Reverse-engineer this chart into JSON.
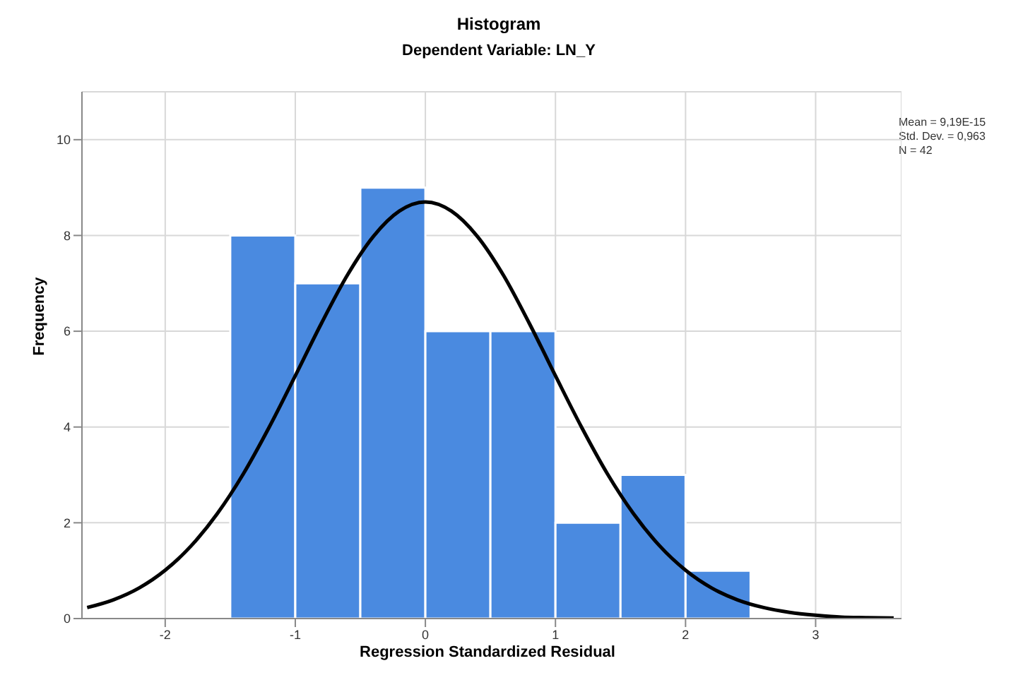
{
  "chart_data": {
    "type": "histogram",
    "title": "Histogram",
    "subtitle": "Dependent Variable: LN_Y",
    "xlabel": "Regression Standardized Residual",
    "ylabel": "Frequency",
    "bins": [
      -1.5,
      -1,
      -0.5,
      0,
      0.5,
      1,
      1.5,
      2,
      2.5
    ],
    "values": [
      8,
      7,
      9,
      6,
      6,
      2,
      3,
      1
    ],
    "color": "#4a8ae0",
    "series": [
      {
        "type": "line",
        "color": "#000000",
        "x": [
          -2.6,
          -2.4,
          -2.2,
          -2.0,
          -1.8,
          -1.6,
          -1.4,
          -1.2,
          -1.0,
          -0.8,
          -0.6,
          -0.4,
          -0.2,
          0,
          0.2,
          0.4,
          0.6,
          0.8,
          1.0,
          1.2,
          1.4,
          1.6,
          1.8,
          2.0,
          2.2,
          2.4,
          2.6,
          2.8,
          3.0,
          3.2,
          3.4,
          3.6
        ],
        "values": [
          0.23,
          0.39,
          0.64,
          1.01,
          1.52,
          2.19,
          3.02,
          4.0,
          5.07,
          6.16,
          7.17,
          7.98,
          8.51,
          8.7,
          8.51,
          7.98,
          7.17,
          6.16,
          5.07,
          4.0,
          3.02,
          2.19,
          1.52,
          1.01,
          0.64,
          0.39,
          0.23,
          0.13,
          0.07,
          0.03,
          0.02,
          0.01
        ]
      }
    ],
    "xlim": [
      -2.64,
      3.66
    ],
    "xticks": [
      -2,
      -1,
      0,
      1,
      2,
      3
    ],
    "ylim": [
      0,
      11
    ],
    "yticks": [
      0,
      2,
      4,
      6,
      8,
      10
    ],
    "grid": true,
    "marker": "none",
    "annotations": [
      "Mean = 9,19E-15",
      "Std. Dev. = 0,963",
      "N = 42"
    ]
  }
}
